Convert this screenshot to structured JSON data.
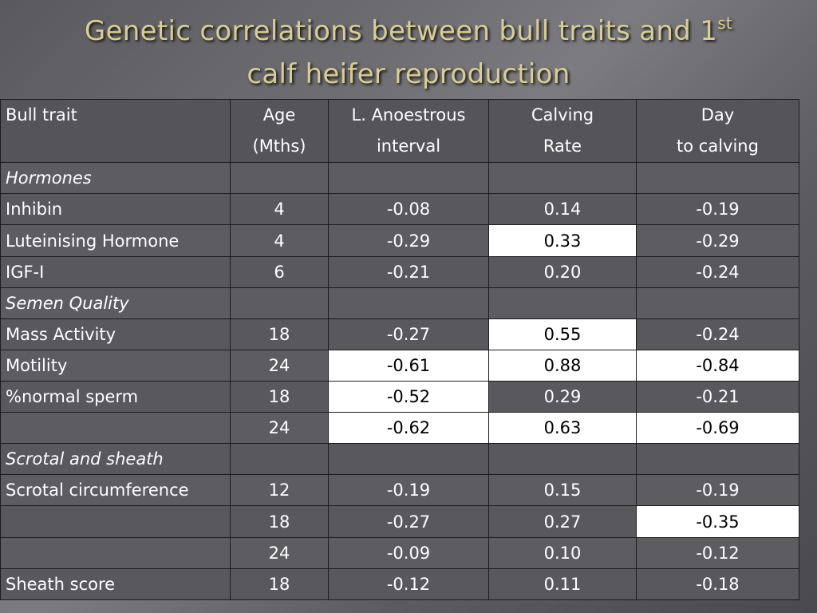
{
  "title": {
    "line1": "Genetic correlations between bull traits and  1",
    "sup": "st",
    "line2": "calf heifer reproduction"
  },
  "table": {
    "headers": [
      [
        "Bull trait",
        ""
      ],
      [
        "Age",
        "(Mths)"
      ],
      [
        "L. Anoestrous",
        "interval"
      ],
      [
        "Calving",
        "Rate"
      ],
      [
        "Day",
        "to calving"
      ]
    ],
    "rows": [
      {
        "type": "section",
        "cells": [
          "Hormones",
          "",
          "",
          "",
          ""
        ]
      },
      {
        "type": "data",
        "cells": [
          "Inhibin",
          "4",
          "-0.08",
          "0.14",
          "-0.19"
        ],
        "highlight": []
      },
      {
        "type": "data",
        "cells": [
          "Luteinising Hormone",
          "4",
          "-0.29",
          "0.33",
          "-0.29"
        ],
        "highlight": [
          3
        ]
      },
      {
        "type": "data",
        "cells": [
          "IGF-I",
          "6",
          "-0.21",
          "0.20",
          "-0.24"
        ],
        "highlight": []
      },
      {
        "type": "section",
        "cells": [
          "Semen Quality",
          "",
          "",
          "",
          ""
        ]
      },
      {
        "type": "data",
        "cells": [
          "Mass Activity",
          "18",
          "-0.27",
          "0.55",
          "-0.24"
        ],
        "highlight": [
          3
        ]
      },
      {
        "type": "data",
        "cells": [
          "Motility",
          "24",
          "-0.61",
          "0.88",
          "-0.84"
        ],
        "highlight": [
          2,
          3,
          4
        ]
      },
      {
        "type": "data",
        "cells": [
          "%normal sperm",
          "18",
          "-0.52",
          "0.29",
          "-0.21"
        ],
        "highlight": [
          2
        ]
      },
      {
        "type": "data",
        "cells": [
          "",
          "24",
          "-0.62",
          "0.63",
          "-0.69"
        ],
        "highlight": [
          2,
          3,
          4
        ]
      },
      {
        "type": "section",
        "cells": [
          "Scrotal and sheath",
          "",
          "",
          "",
          ""
        ]
      },
      {
        "type": "data",
        "cells": [
          "Scrotal circumference",
          "12",
          "-0.19",
          "0.15",
          "-0.19"
        ],
        "highlight": []
      },
      {
        "type": "data",
        "cells": [
          "",
          "18",
          "-0.27",
          "0.27",
          "-0.35"
        ],
        "highlight": [
          4
        ]
      },
      {
        "type": "data",
        "cells": [
          "",
          "24",
          "-0.09",
          "0.10",
          "-0.12"
        ],
        "highlight": []
      },
      {
        "type": "data",
        "cells": [
          "Sheath score",
          "18",
          "-0.12",
          "0.11",
          "-0.18"
        ],
        "highlight": []
      }
    ]
  }
}
